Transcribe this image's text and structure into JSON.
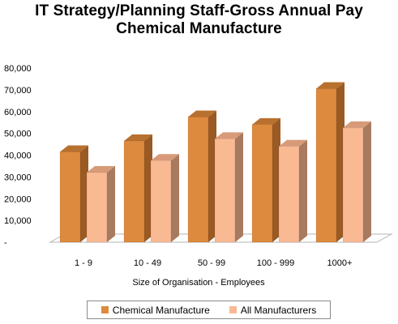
{
  "chart_data": {
    "type": "bar",
    "title": "IT Strategy/Planning Staff-Gross Annual Pay",
    "subtitle": "Chemical Manufacture",
    "xlabel": "Size of Organisation - Employees",
    "ylabel": "",
    "ylim": [
      0,
      80000
    ],
    "yticks": [
      0,
      10000,
      20000,
      30000,
      40000,
      50000,
      60000,
      70000,
      80000
    ],
    "ytick_labels": [
      "-",
      "10,000",
      "20,000",
      "30,000",
      "40,000",
      "50,000",
      "60,000",
      "70,000",
      "80,000"
    ],
    "categories": [
      "1 - 9",
      "10 - 49",
      "50 - 99",
      "100 - 999",
      "1000+"
    ],
    "series": [
      {
        "name": "Chemical Manufacture",
        "values": [
          41500,
          46500,
          57500,
          54000,
          70500
        ]
      },
      {
        "name": "All Manufacturers",
        "values": [
          32000,
          37500,
          47500,
          44000,
          52500
        ]
      }
    ],
    "legend_position": "bottom",
    "grid": false,
    "style": "3d",
    "colors": {
      "series1_front": "#DE8A3E",
      "series1_side": "#9A5A24",
      "series1_top": "#B8702F",
      "series2_front": "#F9B993",
      "series2_side": "#A87A60",
      "series2_top": "#D89A78"
    }
  }
}
